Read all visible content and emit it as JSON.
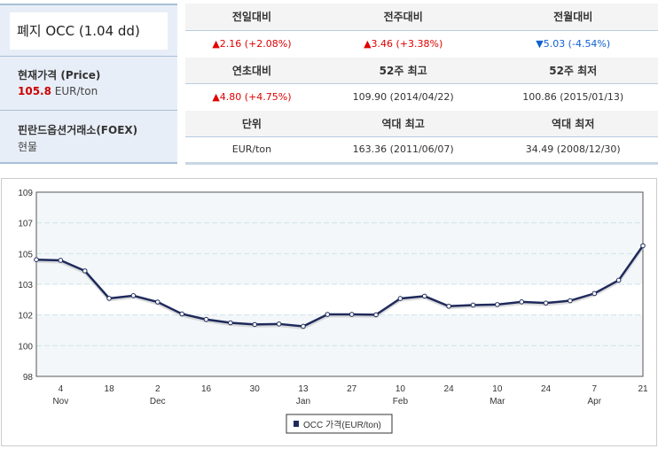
{
  "info": {
    "title": "폐지 OCC (1.04 dd)",
    "price_label": "현재가격 (Price)",
    "price_value": "105.8",
    "price_unit": "EUR/ton",
    "source_label": "핀란드옵션거래소(FOEX)",
    "source_sub": "현물"
  },
  "table": {
    "rows": [
      {
        "headers": [
          "전일대비",
          "전주대비",
          "전월대비"
        ],
        "values": [
          {
            "text": "▲2.16 (+2.08%)",
            "dir": "up"
          },
          {
            "text": "▲3.46 (+3.38%)",
            "dir": "up"
          },
          {
            "text": "▼5.03 (-4.54%)",
            "dir": "down"
          }
        ]
      },
      {
        "headers": [
          "연초대비",
          "52주 최고",
          "52주 최저"
        ],
        "values": [
          {
            "text": "▲4.80 (+4.75%)",
            "dir": "up"
          },
          {
            "text": "109.90 (2014/04/22)",
            "dir": ""
          },
          {
            "text": "100.86 (2015/01/13)",
            "dir": ""
          }
        ]
      },
      {
        "headers": [
          "단위",
          "역대 최고",
          "역대 최저"
        ],
        "values": [
          {
            "text": "EUR/ton",
            "dir": ""
          },
          {
            "text": "163.36 (2011/06/07)",
            "dir": ""
          },
          {
            "text": "34.49 (2008/12/30)",
            "dir": ""
          }
        ]
      }
    ]
  },
  "chart_data": {
    "type": "line",
    "title": "",
    "legend": "OCC 가격(EUR/ton)",
    "legend_position": "bottom-center",
    "ylim": [
      98,
      109
    ],
    "ytick_labels": [
      "98",
      "100",
      "102",
      "103",
      "105",
      "107",
      "109"
    ],
    "x_labels": [
      {
        "i": 1,
        "day": "4",
        "month": "Nov"
      },
      {
        "i": 3,
        "day": "18",
        "month": ""
      },
      {
        "i": 5,
        "day": "2",
        "month": "Dec"
      },
      {
        "i": 7,
        "day": "16",
        "month": ""
      },
      {
        "i": 9,
        "day": "30",
        "month": ""
      },
      {
        "i": 11,
        "day": "13",
        "month": "Jan"
      },
      {
        "i": 13,
        "day": "27",
        "month": ""
      },
      {
        "i": 15,
        "day": "10",
        "month": "Feb"
      },
      {
        "i": 17,
        "day": "24",
        "month": ""
      },
      {
        "i": 19,
        "day": "10",
        "month": "Mar"
      },
      {
        "i": 21,
        "day": "24",
        "month": ""
      },
      {
        "i": 23,
        "day": "7",
        "month": "Apr"
      },
      {
        "i": 25,
        "day": "21",
        "month": ""
      }
    ],
    "values": [
      104.97,
      104.93,
      104.3,
      102.66,
      102.82,
      102.44,
      101.73,
      101.4,
      101.2,
      101.1,
      101.13,
      100.99,
      101.7,
      101.7,
      101.68,
      102.65,
      102.79,
      102.19,
      102.26,
      102.29,
      102.45,
      102.38,
      102.52,
      102.95,
      103.74,
      105.8
    ],
    "color": "#1f2a5c",
    "grid": true
  }
}
